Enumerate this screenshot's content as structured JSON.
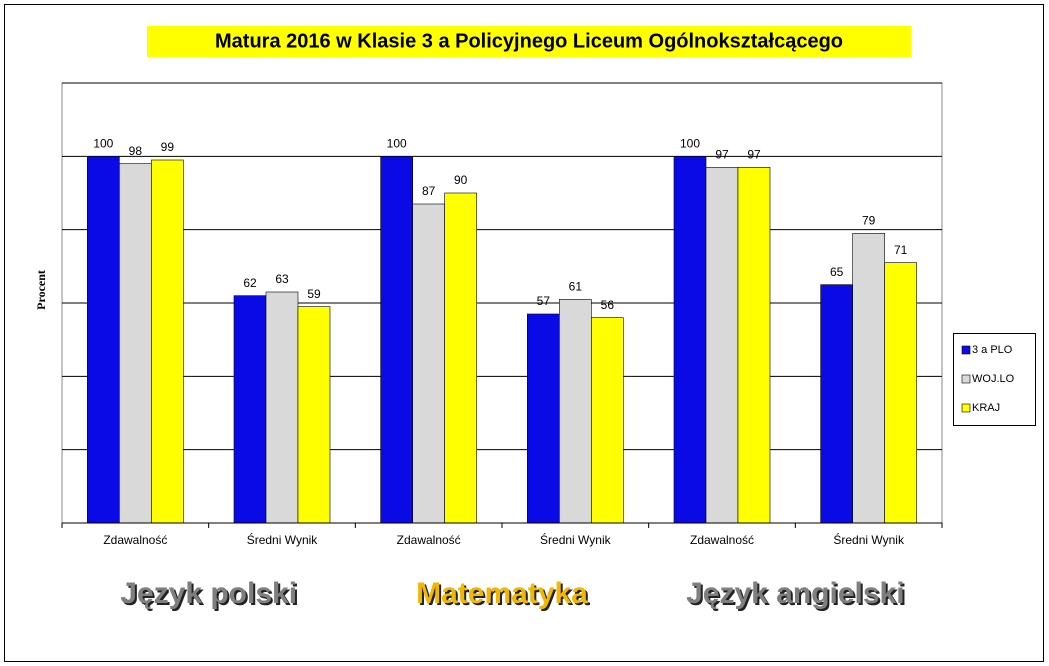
{
  "chart_data": {
    "type": "bar",
    "title": "Matura 2016 w Klasie 3 a Policyjnego Liceum Ogólnokształcącego",
    "y_label": "Procent",
    "categories": [
      "Zdawalność",
      "Średni Wynik",
      "Zdawalność",
      "Średni Wynik",
      "Zdawalność",
      "Średni Wynik"
    ],
    "groups": [
      {
        "label": "Język polski",
        "color": "#7f7f7f"
      },
      {
        "label": "Matematyka",
        "color": "#f2b700"
      },
      {
        "label": "Język angielski",
        "color": "#7f7f7f"
      }
    ],
    "series": [
      {
        "name": "3 a PLO",
        "color": "#0a0ae6",
        "values": [
          100,
          62,
          100,
          57,
          100,
          65
        ]
      },
      {
        "name": "WOJ.LO",
        "color": "#d9d9d9",
        "values": [
          98,
          63,
          87,
          61,
          97,
          79
        ]
      },
      {
        "name": "KRAJ",
        "color": "#ffff00",
        "values": [
          99,
          59,
          90,
          56,
          97,
          71
        ]
      }
    ],
    "ylim": [
      0,
      120
    ],
    "yticks": [
      0,
      20,
      40,
      60,
      80,
      100,
      120
    ],
    "grid": true,
    "legend": "right"
  }
}
